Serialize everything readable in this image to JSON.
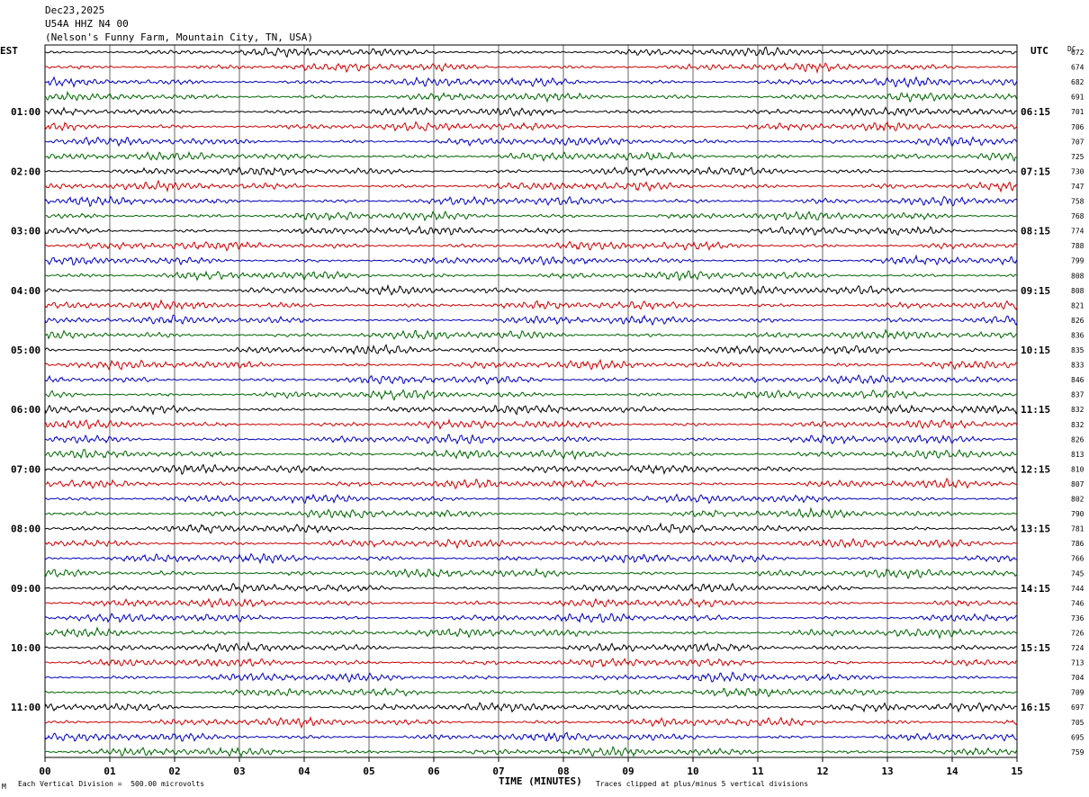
{
  "header": {
    "date": "Dec23,2025",
    "station": "U54A HHZ N4 00",
    "location": "(Nelson's Funny Farm, Mountain City, TN, USA)"
  },
  "left_timezone": "EST",
  "right_timezone": "UTC",
  "dc_label": "DC",
  "chart_data": {
    "type": "line",
    "xlabel": "TIME (MINUTES)",
    "x_ticks": [
      "00",
      "01",
      "02",
      "03",
      "04",
      "05",
      "06",
      "07",
      "08",
      "09",
      "10",
      "11",
      "12",
      "13",
      "14",
      "15"
    ],
    "xlim": [
      0,
      15
    ],
    "rows": 48,
    "trace_colors": [
      "#000000",
      "#cc0000",
      "#0000bb",
      "#006600"
    ],
    "left_hour_labels": [
      "01:00",
      "02:00",
      "03:00",
      "04:00",
      "05:00",
      "06:00",
      "07:00",
      "08:00",
      "09:00",
      "10:00",
      "11:00"
    ],
    "right_hour_labels": [
      "06:15",
      "07:15",
      "08:15",
      "09:15",
      "10:15",
      "11:15",
      "12:15",
      "13:15",
      "14:15",
      "15:15",
      "16:15"
    ],
    "dc_offsets": [
      "672",
      "674",
      "682",
      "691",
      "701",
      "706",
      "707",
      "725",
      "730",
      "747",
      "758",
      "768",
      "774",
      "788",
      "799",
      "808",
      "808",
      "821",
      "826",
      "836",
      "835",
      "833",
      "846",
      "837",
      "832",
      "832",
      "826",
      "813",
      "810",
      "807",
      "802",
      "790",
      "781",
      "786",
      "766",
      "745",
      "744",
      "746",
      "736",
      "726",
      "724",
      "713",
      "704",
      "709",
      "697",
      "705",
      "695",
      "759"
    ]
  },
  "footer": {
    "scale_note": "Each Vertical Division =  500.00 microvolts",
    "clip_note": "Traces clipped at plus/minus 5 vertical divisions",
    "corner_mark": "M"
  }
}
